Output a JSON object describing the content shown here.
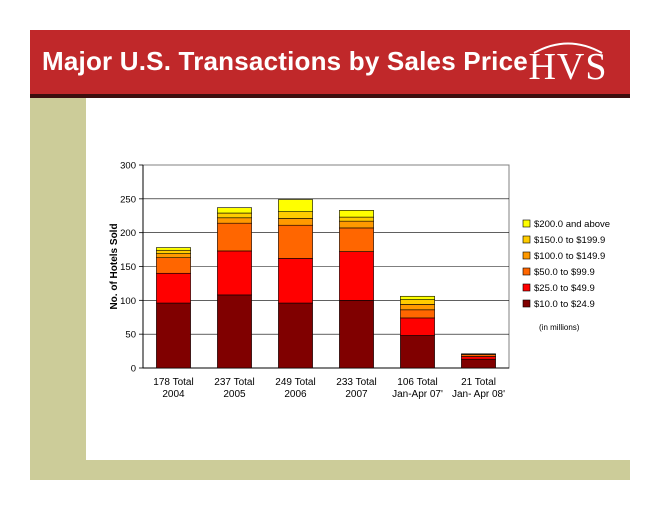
{
  "slide": {
    "title": "Major U.S. Transactions by Sales Price",
    "logo_text": "HVS"
  },
  "colors": {
    "header": "#c0282a",
    "accent_band": "#cccc99"
  },
  "chart_data": {
    "type": "bar",
    "stacked": true,
    "categories": [
      [
        "178 Total",
        "2004"
      ],
      [
        "237 Total",
        "2005"
      ],
      [
        "249 Total",
        "2006"
      ],
      [
        "233 Total",
        "2007"
      ],
      [
        "106 Total",
        "Jan-Apr 07'"
      ],
      [
        "21 Total",
        "Jan- Apr 08'"
      ]
    ],
    "series": [
      {
        "name": "$10.0 to $24.9",
        "color": "#800000",
        "values": [
          96,
          108,
          96,
          100,
          48,
          13
        ]
      },
      {
        "name": "$25.0 to $49.9",
        "color": "#ff0000",
        "values": [
          44,
          65,
          66,
          72,
          26,
          4
        ]
      },
      {
        "name": "$50.0 to $99.9",
        "color": "#ff6600",
        "values": [
          23,
          41,
          49,
          35,
          12,
          3
        ]
      },
      {
        "name": "$100.0 to $149.9",
        "color": "#ff9900",
        "values": [
          6,
          8,
          10,
          10,
          8,
          1
        ]
      },
      {
        "name": "$150.0 to $199.9",
        "color": "#ffcc00",
        "values": [
          5,
          7,
          10,
          6,
          7,
          0
        ]
      },
      {
        "name": "$200.0 and above",
        "color": "#ffff00",
        "values": [
          4,
          8,
          18,
          10,
          5,
          0
        ]
      }
    ],
    "ylabel": "No. of Hotels Sold",
    "xlabel": "",
    "ylim": [
      0,
      300
    ],
    "yticks": [
      0,
      50,
      100,
      150,
      200,
      250,
      300
    ],
    "grid": true,
    "legend_position": "right",
    "legend_order": "reverse",
    "note": "(in millions)"
  }
}
